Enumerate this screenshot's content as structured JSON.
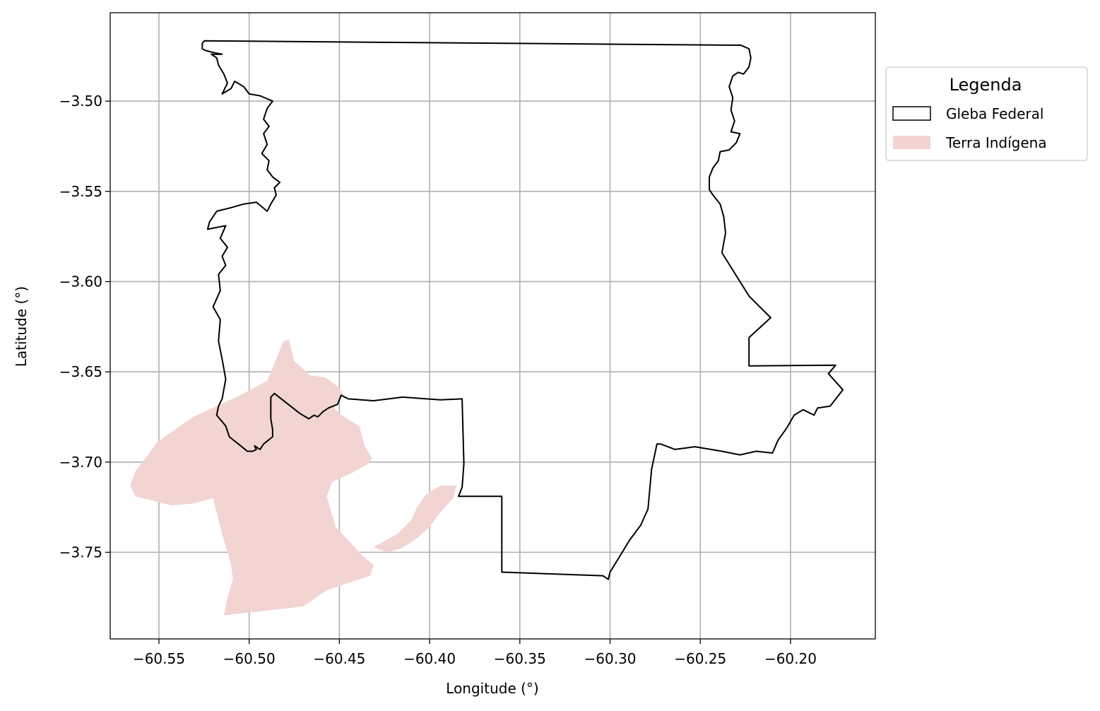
{
  "chart_data": {
    "type": "map",
    "xlabel": "Longitude (°)",
    "ylabel": "Latitude (°)",
    "xlim": [
      -60.577,
      -60.153
    ],
    "ylim": [
      -3.798,
      -3.451
    ],
    "xticks": [
      -60.55,
      -60.5,
      -60.45,
      -60.4,
      -60.35,
      -60.3,
      -60.25,
      -60.2
    ],
    "yticks": [
      -3.5,
      -3.55,
      -3.6,
      -3.65,
      -3.7,
      -3.75
    ],
    "xtick_labels": [
      "−60.55",
      "−60.50",
      "−60.45",
      "−60.40",
      "−60.35",
      "−60.30",
      "−60.25",
      "−60.20"
    ],
    "ytick_labels": [
      "−3.50",
      "−3.55",
      "−3.60",
      "−3.65",
      "−3.70",
      "−3.75"
    ],
    "grid": true,
    "legend_position": "outside-right-top",
    "legend": {
      "title": "Legenda",
      "items": [
        {
          "label": "Gleba Federal",
          "style": "outline",
          "color": "#000000"
        },
        {
          "label": "Terra Indígena",
          "style": "fill",
          "color": "#f2d4d3"
        }
      ]
    },
    "layers": {
      "gleba_federal": {
        "color": "#000000",
        "coords": [
          [
            -60.5248,
            -3.4666
          ],
          [
            -60.2275,
            -3.469
          ],
          [
            -60.223,
            -3.471
          ],
          [
            -60.222,
            -3.476
          ],
          [
            -60.223,
            -3.481
          ],
          [
            -60.226,
            -3.485
          ],
          [
            -60.229,
            -3.484
          ],
          [
            -60.232,
            -3.486
          ],
          [
            -60.234,
            -3.492
          ],
          [
            -60.232,
            -3.498
          ],
          [
            -60.233,
            -3.505
          ],
          [
            -60.231,
            -3.511
          ],
          [
            -60.233,
            -3.517
          ],
          [
            -60.228,
            -3.518
          ],
          [
            -60.23,
            -3.523
          ],
          [
            -60.234,
            -3.527
          ],
          [
            -60.239,
            -3.528
          ],
          [
            -60.24,
            -3.533
          ],
          [
            -60.243,
            -3.537
          ],
          [
            -60.245,
            -3.542
          ],
          [
            -60.245,
            -3.549
          ],
          [
            -60.243,
            -3.552
          ],
          [
            -60.239,
            -3.557
          ],
          [
            -60.237,
            -3.564
          ],
          [
            -60.236,
            -3.573
          ],
          [
            -60.238,
            -3.584
          ],
          [
            -60.223,
            -3.608
          ],
          [
            -60.211,
            -3.62
          ],
          [
            -60.223,
            -3.631
          ],
          [
            -60.223,
            -3.6467
          ],
          [
            -60.175,
            -3.6463
          ],
          [
            -60.179,
            -3.651
          ],
          [
            -60.171,
            -3.66
          ],
          [
            -60.178,
            -3.669
          ],
          [
            -60.185,
            -3.67
          ],
          [
            -60.187,
            -3.674
          ],
          [
            -60.193,
            -3.671
          ],
          [
            -60.198,
            -3.674
          ],
          [
            -60.202,
            -3.681
          ],
          [
            -60.207,
            -3.688
          ],
          [
            -60.21,
            -3.695
          ],
          [
            -60.219,
            -3.694
          ],
          [
            -60.228,
            -3.696
          ],
          [
            -60.238,
            -3.694
          ],
          [
            -60.253,
            -3.6915
          ],
          [
            -60.264,
            -3.693
          ],
          [
            -60.272,
            -3.69
          ],
          [
            -60.274,
            -3.69
          ],
          [
            -60.277,
            -3.704
          ],
          [
            -60.279,
            -3.726
          ],
          [
            -60.283,
            -3.735
          ],
          [
            -60.289,
            -3.743
          ],
          [
            -60.3,
            -3.761
          ],
          [
            -60.301,
            -3.765
          ],
          [
            -60.304,
            -3.763
          ],
          [
            -60.36,
            -3.761
          ],
          [
            -60.36,
            -3.719
          ],
          [
            -60.384,
            -3.719
          ],
          [
            -60.382,
            -3.714
          ],
          [
            -60.381,
            -3.701
          ],
          [
            -60.382,
            -3.665
          ],
          [
            -60.394,
            -3.6655
          ],
          [
            -60.415,
            -3.664
          ],
          [
            -60.431,
            -3.666
          ],
          [
            -60.445,
            -3.665
          ],
          [
            -60.449,
            -3.663
          ],
          [
            -60.451,
            -3.668
          ],
          [
            -60.456,
            -3.67
          ],
          [
            -60.459,
            -3.672
          ],
          [
            -60.462,
            -3.675
          ],
          [
            -60.464,
            -3.674
          ],
          [
            -60.467,
            -3.676
          ],
          [
            -60.472,
            -3.673
          ],
          [
            -60.486,
            -3.662
          ],
          [
            -60.488,
            -3.664
          ],
          [
            -60.488,
            -3.676
          ],
          [
            -60.487,
            -3.682
          ],
          [
            -60.487,
            -3.686
          ],
          [
            -60.492,
            -3.69
          ],
          [
            -60.494,
            -3.693
          ],
          [
            -60.497,
            -3.691
          ],
          [
            -60.496,
            -3.693
          ],
          [
            -60.498,
            -3.694
          ],
          [
            -60.501,
            -3.694
          ],
          [
            -60.506,
            -3.69
          ],
          [
            -60.511,
            -3.686
          ],
          [
            -60.513,
            -3.68
          ],
          [
            -60.518,
            -3.674
          ],
          [
            -60.517,
            -3.669
          ],
          [
            -60.515,
            -3.665
          ],
          [
            -60.513,
            -3.654
          ],
          [
            -60.515,
            -3.643
          ],
          [
            -60.517,
            -3.633
          ],
          [
            -60.516,
            -3.621
          ],
          [
            -60.52,
            -3.614
          ],
          [
            -60.516,
            -3.605
          ],
          [
            -60.517,
            -3.596
          ],
          [
            -60.513,
            -3.591
          ],
          [
            -60.515,
            -3.586
          ],
          [
            -60.512,
            -3.581
          ],
          [
            -60.516,
            -3.576
          ],
          [
            -60.513,
            -3.569
          ],
          [
            -60.523,
            -3.571
          ],
          [
            -60.522,
            -3.567
          ],
          [
            -60.518,
            -3.561
          ],
          [
            -60.51,
            -3.559
          ],
          [
            -60.503,
            -3.557
          ],
          [
            -60.496,
            -3.556
          ],
          [
            -60.49,
            -3.561
          ],
          [
            -60.488,
            -3.557
          ],
          [
            -60.485,
            -3.552
          ],
          [
            -60.486,
            -3.548
          ],
          [
            -60.483,
            -3.545
          ],
          [
            -60.487,
            -3.542
          ],
          [
            -60.49,
            -3.538
          ],
          [
            -60.489,
            -3.533
          ],
          [
            -60.493,
            -3.529
          ],
          [
            -60.49,
            -3.524
          ],
          [
            -60.492,
            -3.518
          ],
          [
            -60.489,
            -3.514
          ],
          [
            -60.492,
            -3.51
          ],
          [
            -60.49,
            -3.504
          ],
          [
            -60.487,
            -3.5
          ],
          [
            -60.494,
            -3.497
          ],
          [
            -60.5,
            -3.496
          ],
          [
            -60.503,
            -3.492
          ],
          [
            -60.508,
            -3.489
          ],
          [
            -60.51,
            -3.493
          ],
          [
            -60.515,
            -3.496
          ],
          [
            -60.512,
            -3.49
          ],
          [
            -60.514,
            -3.485
          ],
          [
            -60.517,
            -3.48
          ],
          [
            -60.518,
            -3.476
          ],
          [
            -60.521,
            -3.474
          ],
          [
            -60.515,
            -3.474
          ],
          [
            -60.52,
            -3.473
          ],
          [
            -60.524,
            -3.472
          ],
          [
            -60.526,
            -3.471
          ],
          [
            -60.526,
            -3.468
          ],
          [
            -60.5248,
            -3.4666
          ]
        ]
      },
      "terra_indigena": {
        "color": "#f2d4d3",
        "polygons": [
          [
            [
              -60.514,
              -3.785
            ],
            [
              -60.47,
              -3.78
            ],
            [
              -60.457,
              -3.771
            ],
            [
              -60.433,
              -3.763
            ],
            [
              -60.431,
              -3.757
            ],
            [
              -60.437,
              -3.752
            ],
            [
              -60.452,
              -3.736
            ],
            [
              -60.457,
              -3.719
            ],
            [
              -60.454,
              -3.711
            ],
            [
              -60.443,
              -3.706
            ],
            [
              -60.434,
              -3.701
            ],
            [
              -60.432,
              -3.698
            ],
            [
              -60.436,
              -3.691
            ],
            [
              -60.439,
              -3.68
            ],
            [
              -60.449,
              -3.674
            ],
            [
              -60.453,
              -3.67
            ],
            [
              -60.448,
              -3.662
            ],
            [
              -60.451,
              -3.658
            ],
            [
              -60.458,
              -3.653
            ],
            [
              -60.466,
              -3.652
            ],
            [
              -60.475,
              -3.644
            ],
            [
              -60.478,
              -3.632
            ],
            [
              -60.481,
              -3.633
            ],
            [
              -60.485,
              -3.643
            ],
            [
              -60.49,
              -3.655
            ],
            [
              -60.505,
              -3.663
            ],
            [
              -60.531,
              -3.675
            ],
            [
              -60.544,
              -3.684
            ],
            [
              -60.551,
              -3.689
            ],
            [
              -60.556,
              -3.696
            ],
            [
              -60.563,
              -3.705
            ],
            [
              -60.566,
              -3.713
            ],
            [
              -60.563,
              -3.719
            ],
            [
              -60.555,
              -3.721
            ],
            [
              -60.543,
              -3.724
            ],
            [
              -60.531,
              -3.723
            ],
            [
              -60.52,
              -3.72
            ],
            [
              -60.515,
              -3.74
            ],
            [
              -60.51,
              -3.757
            ],
            [
              -60.509,
              -3.765
            ],
            [
              -60.512,
              -3.775
            ],
            [
              -60.514,
              -3.785
            ]
          ],
          [
            [
              -60.431,
              -3.747
            ],
            [
              -60.418,
              -3.74
            ],
            [
              -60.41,
              -3.732
            ],
            [
              -60.407,
              -3.725
            ],
            [
              -60.402,
              -3.718
            ],
            [
              -60.394,
              -3.713
            ],
            [
              -60.385,
              -3.713
            ],
            [
              -60.387,
              -3.72
            ],
            [
              -60.395,
              -3.729
            ],
            [
              -60.4,
              -3.736
            ],
            [
              -60.408,
              -3.743
            ],
            [
              -60.416,
              -3.748
            ],
            [
              -60.424,
              -3.75
            ],
            [
              -60.431,
              -3.747
            ]
          ]
        ]
      }
    }
  }
}
